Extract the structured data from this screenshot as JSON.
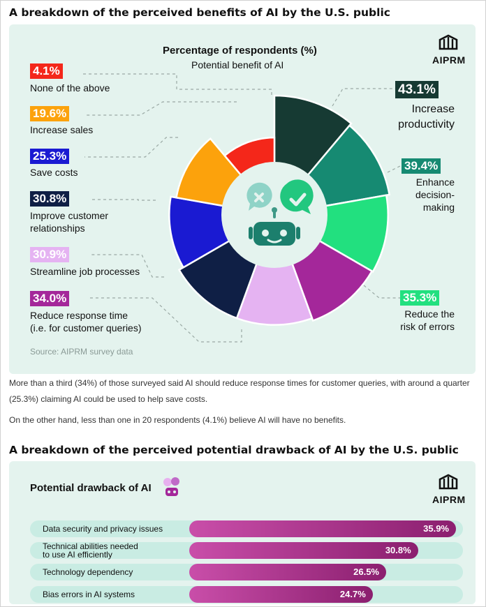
{
  "section1": {
    "heading": "A breakdown of the perceived benefits of AI by the U.S. public",
    "brand": "AIPRM",
    "source": "Source: AIPRM survey data"
  },
  "chart_data": [
    {
      "type": "pie",
      "title": "Percentage of respondents (%)",
      "subtitle": "Potential benefit of AI",
      "categories": [
        "Increase productivity",
        "Enhance decision-making",
        "Reduce the risk of errors",
        "Reduce response time (i.e. for customer queries)",
        "Streamline job processes",
        "Improve customer relationships",
        "Save costs",
        "Increase sales",
        "None of the above"
      ],
      "values": [
        43.1,
        39.4,
        35.3,
        34.0,
        30.9,
        30.8,
        25.3,
        19.6,
        4.1
      ],
      "value_labels": [
        "43.1%",
        "39.4%",
        "35.3%",
        "34.0%",
        "30.9%",
        "30.8%",
        "25.3%",
        "19.6%",
        "4.1%"
      ],
      "label_lines": [
        [
          "Increase",
          "productivity"
        ],
        [
          "Enhance",
          "decision-",
          "making"
        ],
        [
          "Reduce the",
          "risk of errors"
        ],
        [
          "Reduce response time",
          "(i.e. for customer queries)"
        ],
        [
          "Streamline job processes"
        ],
        [
          "Improve customer",
          "relationships"
        ],
        [
          "Save costs"
        ],
        [
          "Increase sales"
        ],
        [
          "None of the above"
        ]
      ],
      "colors": [
        "#163a33",
        "#168a72",
        "#22e07f",
        "#a4279a",
        "#e5b3f2",
        "#0f1f45",
        "#1a1ad2",
        "#fca20c",
        "#f4271a"
      ]
    },
    {
      "type": "bar",
      "title": "Potential drawback of AI",
      "categories": [
        "Data security and privacy issues",
        "Technical abilities needed to use AI efficiently",
        "Technology dependency",
        "Bias errors in AI systems"
      ],
      "label_lines": [
        [
          "Data security and privacy issues"
        ],
        [
          "Technical abilities needed",
          "to use AI efficiently"
        ],
        [
          "Technology dependency"
        ],
        [
          "Bias errors in AI systems"
        ]
      ],
      "values": [
        35.9,
        30.8,
        26.5,
        24.7
      ],
      "value_labels": [
        "35.9%",
        "30.8%",
        "26.5%",
        "24.7%"
      ],
      "xlim": [
        0,
        35.9
      ]
    }
  ],
  "paragraphs": [
    "More than a third (34%) of those surveyed said AI should reduce response times for customer queries, with around a quarter (25.3%) claiming AI could be used to help save costs.",
    "On the other hand, less than one in 20 respondents (4.1%) believe AI will have no benefits."
  ],
  "section2": {
    "heading": "A breakdown of the perceived potential drawback of AI by the U.S. public",
    "brand": "AIPRM"
  },
  "icons": {
    "robot": "robot-icon",
    "brand_mark": "aiprm-logo-icon"
  }
}
